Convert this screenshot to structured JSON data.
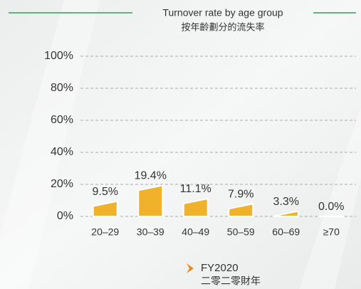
{
  "chart_data": {
    "type": "bar",
    "title": "Turnover rate by age group",
    "subtitle": "按年齡劃分的流失率",
    "categories": [
      "20–29",
      "30–39",
      "40–49",
      "50–59",
      "60–69",
      "≥70"
    ],
    "series": [
      {
        "name": "FY2020",
        "name_zh": "二零二零財年",
        "color": "#f0b22a",
        "values": [
          9.5,
          19.4,
          11.1,
          7.9,
          3.3,
          0.0
        ],
        "value_labels": [
          "9.5%",
          "19.4%",
          "11.1%",
          "7.9%",
          "3.3%",
          "0.0%"
        ]
      }
    ],
    "ylim": [
      0,
      100
    ],
    "yticks": [
      {
        "value": 0,
        "label": "0%"
      },
      {
        "value": 20,
        "label": "20%"
      },
      {
        "value": 40,
        "label": "40%"
      },
      {
        "value": 60,
        "label": "60%"
      },
      {
        "value": 80,
        "label": "80%"
      },
      {
        "value": 100,
        "label": "100%"
      }
    ],
    "grid": true
  }
}
